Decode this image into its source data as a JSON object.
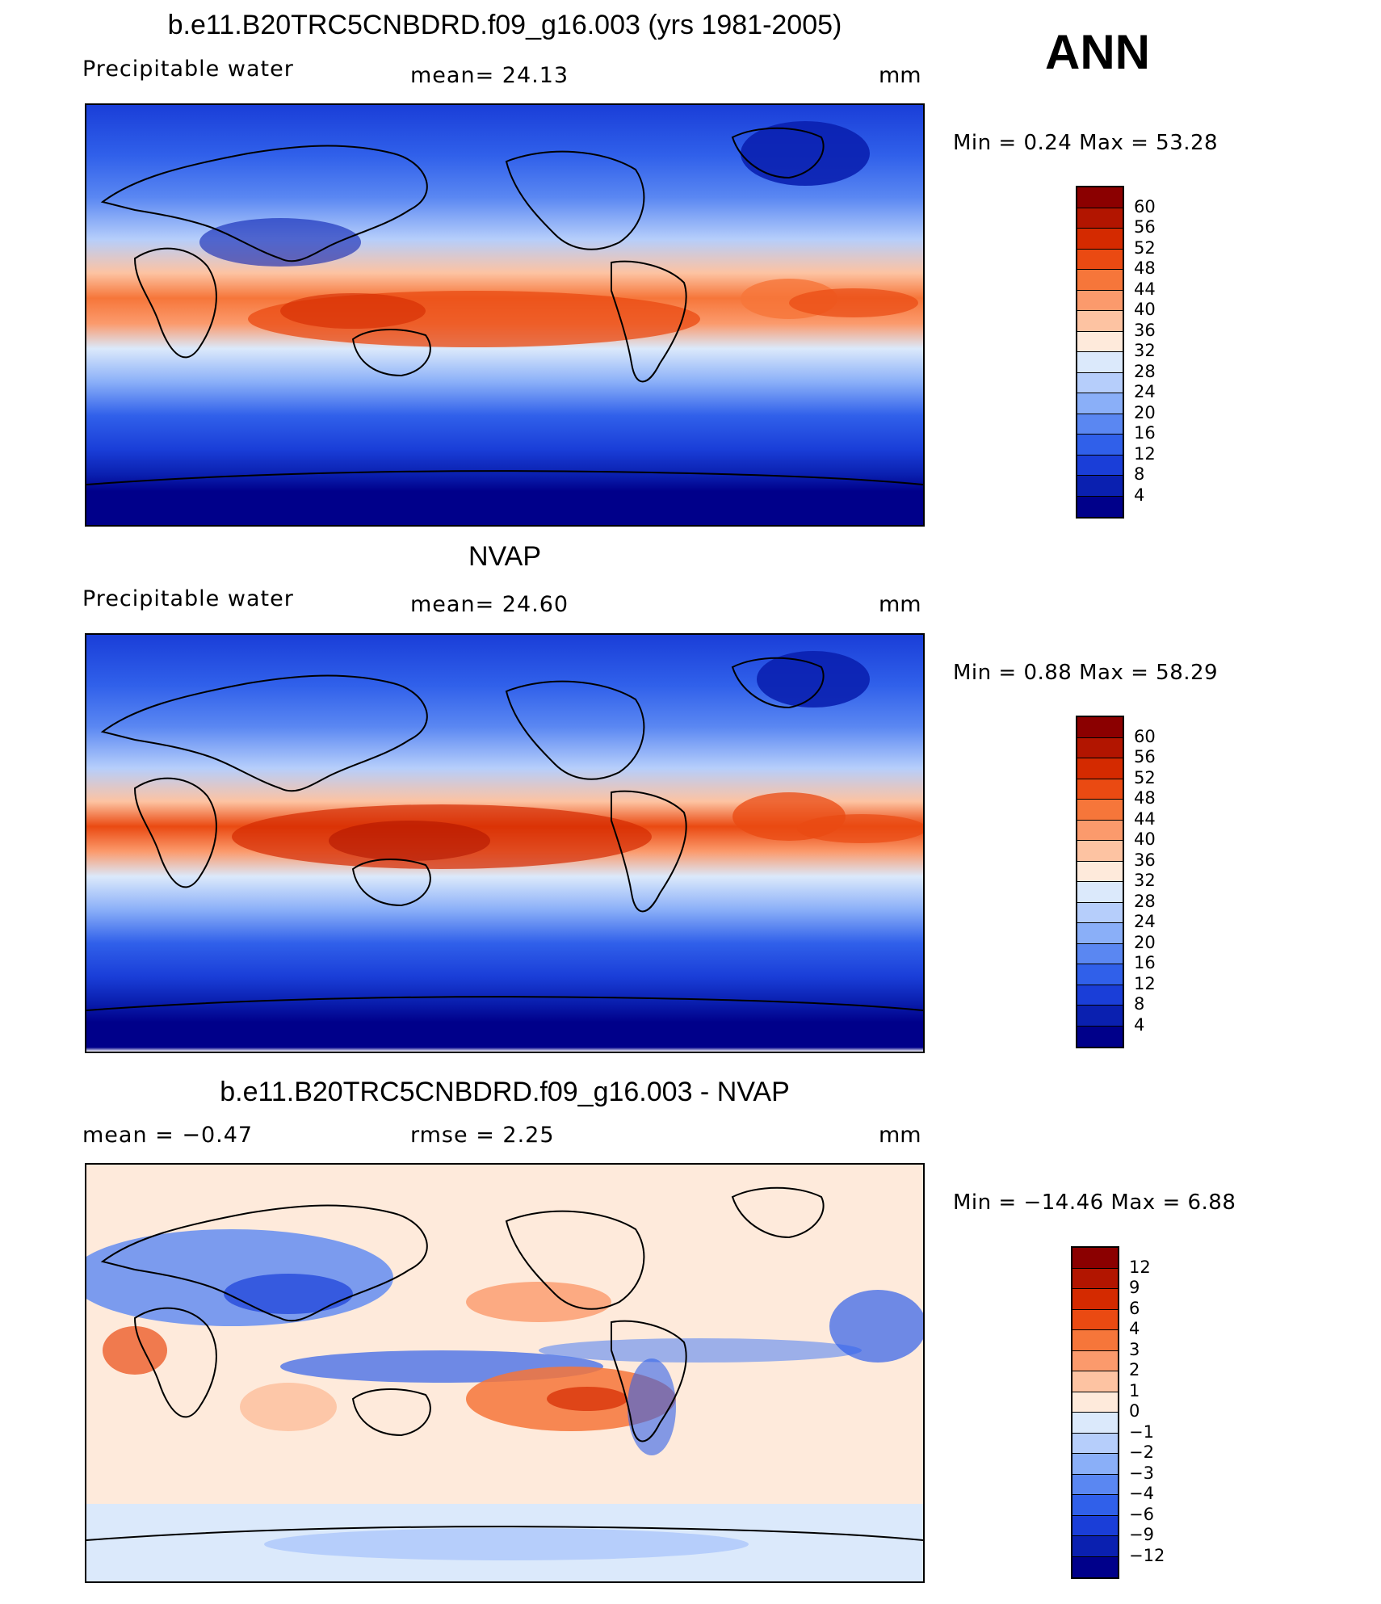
{
  "ann_label": "ANN",
  "panels": [
    {
      "title": "b.e11.B20TRC5CNBDRD.f09_g16.003 (yrs 1981-2005)",
      "left_label": "Precipitable  water",
      "mid_label": "mean=   24.13",
      "units": "mm",
      "minmax": "Min  =     0.24  Max  =    53.28",
      "colorbar": {
        "ticks": [
          "60",
          "56",
          "52",
          "48",
          "44",
          "40",
          "36",
          "32",
          "28",
          "24",
          "20",
          "16",
          "12",
          "8",
          "4"
        ],
        "colors": [
          "#8b0000",
          "#b21500",
          "#d42a00",
          "#ea4a12",
          "#f6763a",
          "#fb9a6c",
          "#fdc3a2",
          "#feeadb",
          "#dbe9fb",
          "#b6cefb",
          "#8aaff8",
          "#5a87f2",
          "#3060ea",
          "#1a3ed8",
          "#0a20b0",
          "#00008a"
        ]
      }
    },
    {
      "title": "NVAP",
      "left_label": "Precipitable  water",
      "mid_label": "mean=   24.60",
      "units": "mm",
      "minmax": "Min  =     0.88  Max  =    58.29",
      "colorbar": {
        "ticks": [
          "60",
          "56",
          "52",
          "48",
          "44",
          "40",
          "36",
          "32",
          "28",
          "24",
          "20",
          "16",
          "12",
          "8",
          "4"
        ],
        "colors": [
          "#8b0000",
          "#b21500",
          "#d42a00",
          "#ea4a12",
          "#f6763a",
          "#fb9a6c",
          "#fdc3a2",
          "#feeadb",
          "#dbe9fb",
          "#b6cefb",
          "#8aaff8",
          "#5a87f2",
          "#3060ea",
          "#1a3ed8",
          "#0a20b0",
          "#00008a"
        ]
      }
    },
    {
      "title": "b.e11.B20TRC5CNBDRD.f09_g16.003 - NVAP",
      "left_label": "mean  =    −0.47",
      "mid_label": "rmse  =     2.25",
      "units": "mm",
      "minmax": "Min  =  −14.46  Max  =     6.88",
      "colorbar": {
        "ticks": [
          "12",
          "9",
          "6",
          "4",
          "3",
          "2",
          "1",
          "0",
          "−1",
          "−2",
          "−3",
          "−4",
          "−6",
          "−9",
          "−12"
        ],
        "colors": [
          "#8b0000",
          "#b21500",
          "#d42a00",
          "#ea4a12",
          "#f6763a",
          "#fb9a6c",
          "#fdc3a2",
          "#feeadb",
          "#dbe9fb",
          "#b6cefb",
          "#8aaff8",
          "#5a87f2",
          "#3060ea",
          "#1a3ed8",
          "#0a20b0",
          "#00008a"
        ]
      }
    }
  ]
}
